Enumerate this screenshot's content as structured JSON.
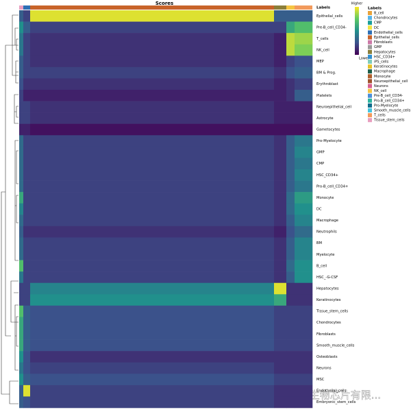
{
  "chart_data": {
    "type": "heatmap",
    "title": "Scores",
    "annotation_title": "Labels",
    "rows": [
      "Epithelial_cells",
      "Pre-B_cell_CD34-",
      "T_cells",
      "NK_cell",
      "MEP",
      "BM & Prog.",
      "Erythroblast",
      "Platelets",
      "Neuroepithelial_cell",
      "Astrocyte",
      "Gametocytes",
      "Pro-Myelocyte",
      "GMP",
      "CMP",
      "HSC_CD34+",
      "Pro-B_cell_CD34+",
      "Monocyte",
      "DC",
      "Macrophage",
      "Neutrophils",
      "BM",
      "Myelocyte",
      "B_cell",
      "HSC_-G-CSF",
      "Hepatocytes",
      "Keratinocytes",
      "Tissue_stem_cells",
      "Chondrocytes",
      "Fibroblasts",
      "Smooth_muscle_cells",
      "Osteoblasts",
      "Neurons",
      "MSC",
      "Endothelial_cells",
      "Embryonic_stem_cells"
    ],
    "groups": [
      {
        "color": "#e89fbf",
        "cells": 6,
        "scores": [
          0.3,
          0.5,
          0.4,
          0.4,
          0.3,
          0.3,
          0.25,
          0.2,
          0.2,
          0.2,
          0.1,
          0.35,
          0.35,
          0.35,
          0.35,
          0.35,
          0.6,
          0.45,
          0.35,
          0.3,
          0.35,
          0.35,
          0.7,
          0.4,
          0.2,
          0.2,
          0.7,
          0.6,
          0.6,
          0.6,
          0.5,
          0.4,
          0.5,
          0.3,
          0.3
        ]
      },
      {
        "color": "#2d6fb5",
        "cells": 10,
        "scores": [
          0.2,
          0.3,
          0.2,
          0.2,
          0.2,
          0.2,
          0.15,
          0.1,
          0.2,
          0.2,
          0.1,
          0.2,
          0.2,
          0.2,
          0.2,
          0.2,
          0.2,
          0.2,
          0.2,
          0.15,
          0.2,
          0.2,
          0.2,
          0.2,
          0.2,
          0.2,
          0.3,
          0.3,
          0.3,
          0.3,
          0.25,
          0.25,
          0.3,
          0.95,
          0.25
        ]
      },
      {
        "color": "#c8642a",
        "cells": 356,
        "scores": [
          0.95,
          0.2,
          0.15,
          0.15,
          0.15,
          0.2,
          0.15,
          0.1,
          0.15,
          0.15,
          0.05,
          0.2,
          0.2,
          0.2,
          0.2,
          0.2,
          0.2,
          0.2,
          0.2,
          0.15,
          0.2,
          0.2,
          0.2,
          0.2,
          0.45,
          0.5,
          0.25,
          0.25,
          0.25,
          0.25,
          0.15,
          0.2,
          0.25,
          0.2,
          0.2
        ]
      },
      {
        "color": "#8b7f3a",
        "cells": 18,
        "scores": [
          0.3,
          0.2,
          0.1,
          0.1,
          0.1,
          0.15,
          0.1,
          0.1,
          0.1,
          0.1,
          0.05,
          0.15,
          0.15,
          0.15,
          0.15,
          0.15,
          0.15,
          0.15,
          0.15,
          0.1,
          0.15,
          0.15,
          0.15,
          0.15,
          0.95,
          0.6,
          0.2,
          0.2,
          0.2,
          0.2,
          0.15,
          0.15,
          0.2,
          0.15,
          0.15
        ]
      },
      {
        "color": "#f5c542",
        "cells": 12,
        "scores": [
          0.3,
          0.6,
          0.9,
          0.9,
          0.2,
          0.25,
          0.15,
          0.15,
          0.1,
          0.1,
          0.05,
          0.3,
          0.3,
          0.3,
          0.3,
          0.3,
          0.35,
          0.35,
          0.3,
          0.25,
          0.3,
          0.3,
          0.35,
          0.3,
          0.15,
          0.15,
          0.2,
          0.2,
          0.2,
          0.2,
          0.15,
          0.15,
          0.2,
          0.15,
          0.15
        ]
      },
      {
        "color": "#f29a5c",
        "cells": 26,
        "scores": [
          0.3,
          0.7,
          0.85,
          0.8,
          0.25,
          0.3,
          0.2,
          0.3,
          0.1,
          0.1,
          0.05,
          0.4,
          0.45,
          0.4,
          0.45,
          0.4,
          0.55,
          0.5,
          0.45,
          0.35,
          0.45,
          0.45,
          0.5,
          0.5,
          0.15,
          0.15,
          0.2,
          0.2,
          0.2,
          0.2,
          0.15,
          0.15,
          0.2,
          0.15,
          0.15
        ]
      }
    ],
    "colorscale": [
      "#440154",
      "#3b528b",
      "#21908c",
      "#5dc963",
      "#fde725"
    ],
    "colorbar_high": "Higher",
    "colorbar_low": "Lower",
    "legend": [
      {
        "name": "B_cell",
        "color": "#e8a23a"
      },
      {
        "name": "Chondrocytes",
        "color": "#56b4e9"
      },
      {
        "name": "CMP",
        "color": "#1b9e9a"
      },
      {
        "name": "DC",
        "color": "#f0e442"
      },
      {
        "name": "Endothelial_cells",
        "color": "#2d6fb5"
      },
      {
        "name": "Epithelial_cells",
        "color": "#c8642a"
      },
      {
        "name": "Fibroblasts",
        "color": "#cc79a7"
      },
      {
        "name": "GMP",
        "color": "#999999"
      },
      {
        "name": "Hepatocytes",
        "color": "#8b7f3a"
      },
      {
        "name": "HSC_CD34+",
        "color": "#2f8fd0"
      },
      {
        "name": "iPS_cells",
        "color": "#7fcdbb"
      },
      {
        "name": "Keratinocytes",
        "color": "#e6c229"
      },
      {
        "name": "Macrophage",
        "color": "#1c5f4a"
      },
      {
        "name": "Monocyte",
        "color": "#b05e2a"
      },
      {
        "name": "Neuroepithelial_cell",
        "color": "#a0522d"
      },
      {
        "name": "Neurons",
        "color": "#d95f8f"
      },
      {
        "name": "NK_cell",
        "color": "#f5c542"
      },
      {
        "name": "Pre-B_cell_CD34-",
        "color": "#4a8fd9"
      },
      {
        "name": "Pro-B_cell_CD34+",
        "color": "#2cb5a0"
      },
      {
        "name": "Pro-Myelocyte",
        "color": "#0f6d8c"
      },
      {
        "name": "Smooth_muscle_cells",
        "color": "#46c6e0"
      },
      {
        "name": "T_cells",
        "color": "#f29a5c"
      },
      {
        "name": "Tissue_stem_cells",
        "color": "#e89fbf"
      }
    ]
  },
  "watermark": "知乎 @上海生物芯片有限..."
}
